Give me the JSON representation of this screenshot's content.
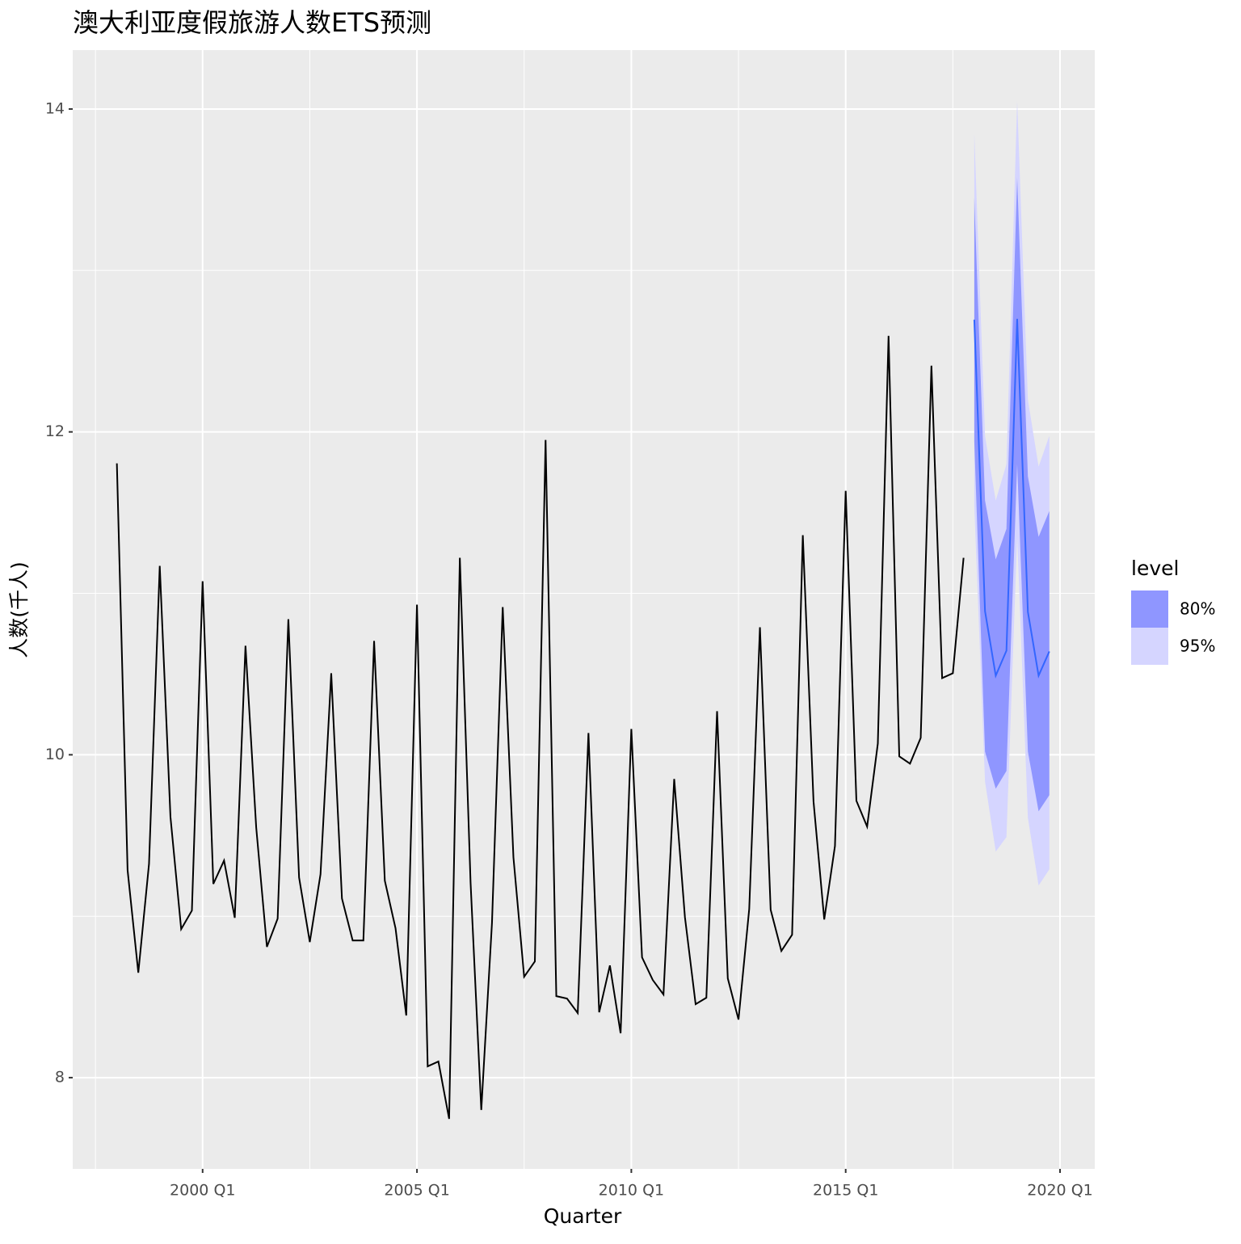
{
  "chart_data": {
    "type": "line",
    "title": "澳大利亚度假旅游人数ETS预测",
    "x_label": "Quarter",
    "y_label": "人数(千人)",
    "x": [
      "1998 Q1",
      "1998 Q2",
      "1998 Q3",
      "1998 Q4",
      "1999 Q1",
      "1999 Q2",
      "1999 Q3",
      "1999 Q4",
      "2000 Q1",
      "2000 Q2",
      "2000 Q3",
      "2000 Q4",
      "2001 Q1",
      "2001 Q2",
      "2001 Q3",
      "2001 Q4",
      "2002 Q1",
      "2002 Q2",
      "2002 Q3",
      "2002 Q4",
      "2003 Q1",
      "2003 Q2",
      "2003 Q3",
      "2003 Q4",
      "2004 Q1",
      "2004 Q2",
      "2004 Q3",
      "2004 Q4",
      "2005 Q1",
      "2005 Q2",
      "2005 Q3",
      "2005 Q4",
      "2006 Q1",
      "2006 Q2",
      "2006 Q3",
      "2006 Q4",
      "2007 Q1",
      "2007 Q2",
      "2007 Q3",
      "2007 Q4",
      "2008 Q1",
      "2008 Q2",
      "2008 Q3",
      "2008 Q4",
      "2009 Q1",
      "2009 Q2",
      "2009 Q3",
      "2009 Q4",
      "2010 Q1",
      "2010 Q2",
      "2010 Q3",
      "2010 Q4",
      "2011 Q1",
      "2011 Q2",
      "2011 Q3",
      "2011 Q4",
      "2012 Q1",
      "2012 Q2",
      "2012 Q3",
      "2012 Q4",
      "2013 Q1",
      "2013 Q2",
      "2013 Q3",
      "2013 Q4",
      "2014 Q1",
      "2014 Q2",
      "2014 Q3",
      "2014 Q4",
      "2015 Q1",
      "2015 Q2",
      "2015 Q3",
      "2015 Q4",
      "2016 Q1",
      "2016 Q2",
      "2016 Q3",
      "2016 Q4",
      "2017 Q1",
      "2017 Q2",
      "2017 Q3",
      "2017 Q4"
    ],
    "values": [
      11.805,
      9.285,
      8.65,
      9.325,
      11.17,
      9.615,
      8.92,
      9.035,
      11.075,
      9.2,
      9.345,
      8.99,
      10.675,
      9.55,
      8.81,
      8.985,
      10.84,
      9.24,
      8.84,
      9.26,
      10.505,
      9.11,
      8.85,
      8.85,
      10.705,
      9.22,
      8.925,
      8.385,
      10.93,
      8.07,
      8.1,
      7.745,
      11.22,
      9.21,
      7.8,
      8.96,
      10.915,
      9.365,
      8.625,
      8.72,
      11.95,
      8.505,
      8.49,
      8.4,
      10.135,
      8.405,
      8.695,
      8.275,
      10.16,
      8.745,
      8.605,
      8.515,
      9.85,
      8.995,
      8.455,
      8.495,
      10.27,
      8.615,
      8.36,
      9.045,
      10.79,
      9.04,
      8.785,
      8.885,
      11.36,
      9.71,
      8.98,
      9.435,
      11.635,
      9.715,
      9.555,
      10.07,
      12.595,
      9.99,
      9.945,
      10.105,
      12.41,
      10.475,
      10.505,
      11.22
    ],
    "color": "#000000",
    "forecast": {
      "x": [
        "2018 Q1",
        "2018 Q2",
        "2018 Q3",
        "2018 Q4",
        "2019 Q1",
        "2019 Q2",
        "2019 Q3",
        "2019 Q4"
      ],
      "mean": [
        12.695,
        10.89,
        10.49,
        10.645,
        12.7,
        10.885,
        10.49,
        10.64
      ],
      "color": "#3366ff"
    },
    "legend_title": "level",
    "intervals": [
      {
        "name": "95%",
        "color": "#d5d5ff",
        "upper": [
          13.85,
          11.975,
          11.575,
          11.8,
          14.05,
          12.2,
          11.785,
          11.975
        ],
        "lower": [
          11.54,
          9.835,
          9.4,
          9.49,
          11.35,
          9.61,
          9.19,
          9.29
        ]
      },
      {
        "name": "80%",
        "color": "#8f96ff",
        "upper": [
          13.45,
          11.575,
          11.21,
          11.4,
          13.575,
          11.725,
          11.35,
          11.51
        ],
        "lower": [
          11.94,
          10.02,
          9.79,
          9.9,
          11.8,
          10.02,
          9.65,
          9.75
        ]
      }
    ],
    "xlim": [
      1996.97,
      2020.81
    ],
    "ylim": [
      7.435,
      14.365
    ],
    "xticks": [
      {
        "value": 2000,
        "label": "2000 Q1"
      },
      {
        "value": 2005,
        "label": "2005 Q1"
      },
      {
        "value": 2010,
        "label": "2010 Q1"
      },
      {
        "value": 2015,
        "label": "2015 Q1"
      },
      {
        "value": 2020,
        "label": "2020 Q1"
      }
    ],
    "yticks": [
      8,
      10,
      12,
      14
    ],
    "x_minor_ticks": [
      1997.5,
      2002.5,
      2007.5,
      2012.5,
      2017.5
    ],
    "y_minor_ticks": [
      9,
      11,
      13
    ],
    "grid": true
  }
}
